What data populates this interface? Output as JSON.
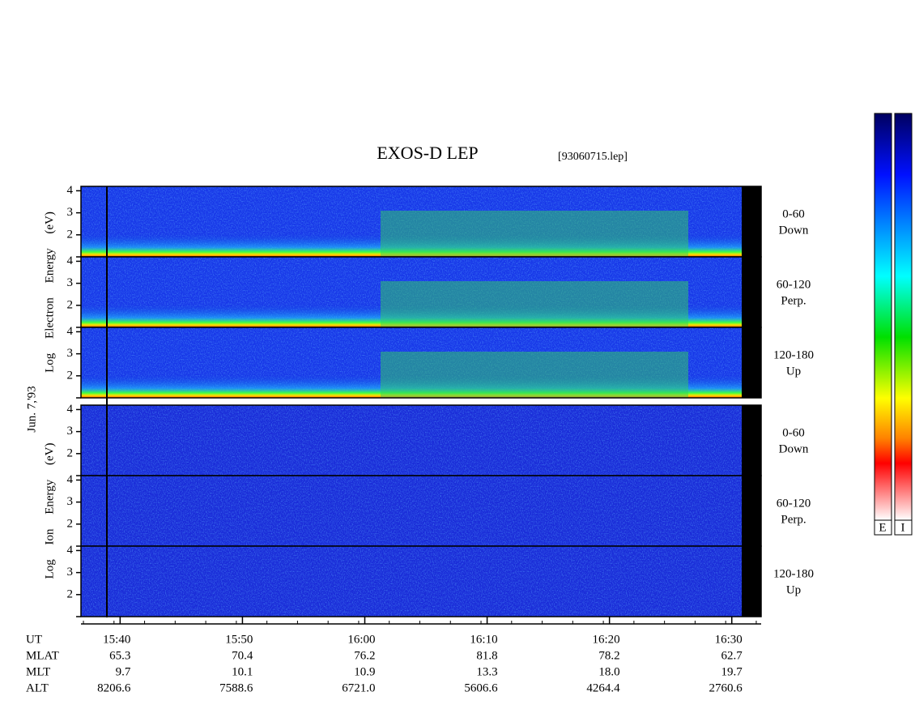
{
  "chart_data": {
    "type": "spectrogram",
    "title": "EXOS-D LEP",
    "subtitle": "[93060715.lep]",
    "date_label": "Jun. 7,'93",
    "xlim": [
      936.8,
      992.4
    ],
    "xticks": [
      {
        "value": 940,
        "label": "15:40"
      },
      {
        "value": 950,
        "label": "15:50"
      },
      {
        "value": 960,
        "label": "16:00"
      },
      {
        "value": 970,
        "label": "16:10"
      },
      {
        "value": 980,
        "label": "16:20"
      },
      {
        "value": 990,
        "label": "16:30"
      }
    ],
    "rows": [
      {
        "name": "UT",
        "values": []
      },
      {
        "name": "MLAT",
        "values": [
          "65.3",
          "70.4",
          "76.2",
          "81.8",
          "78.2",
          "62.7"
        ]
      },
      {
        "name": "MLT",
        "values": [
          "9.7",
          "10.1",
          "10.9",
          "13.3",
          "18.0",
          "19.7"
        ]
      },
      {
        "name": "ALT",
        "values": [
          "8206.6",
          "7588.6",
          "6721.0",
          "5606.6",
          "4264.4",
          "2760.6"
        ]
      }
    ],
    "ylim": [
      1,
      4.2
    ],
    "yticks": [
      1,
      2,
      3,
      4
    ],
    "groups": [
      {
        "axis_label": "Log Electron Energy (eV)",
        "species": "E",
        "panels": [
          {
            "range": "0-60",
            "direction": "Down"
          },
          {
            "range": "60-120",
            "direction": "Perp."
          },
          {
            "range": "120-180",
            "direction": "Up"
          }
        ]
      },
      {
        "axis_label": "Log Ion Energy (eV)",
        "species": "I",
        "panels": [
          {
            "range": "0-60",
            "direction": "Down"
          },
          {
            "range": "60-120",
            "direction": "Perp."
          },
          {
            "range": "120-180",
            "direction": "Up"
          }
        ]
      }
    ]
  }
}
